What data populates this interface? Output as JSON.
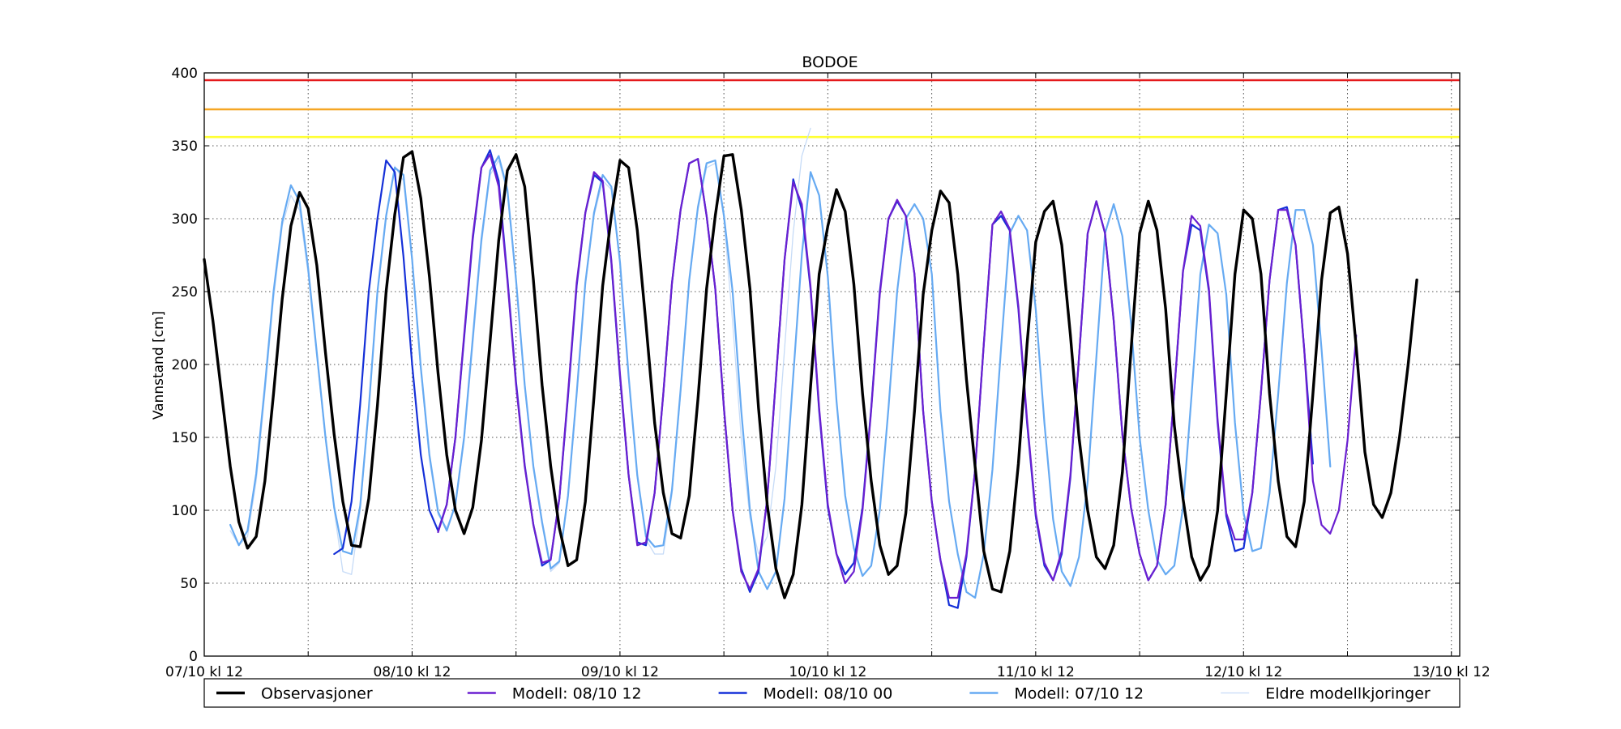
{
  "chart_data": {
    "type": "line",
    "title": "BODOE",
    "xlabel": "",
    "ylabel": "Vannstand [cm]",
    "xlim": [
      0,
      6.04
    ],
    "ylim": [
      0,
      400
    ],
    "yticks": [
      0,
      50,
      100,
      150,
      200,
      250,
      300,
      350,
      400
    ],
    "xticks": [
      {
        "x": 0,
        "label": "07/10 kl 12"
      },
      {
        "x": 0.5,
        "label": ""
      },
      {
        "x": 1,
        "label": "08/10 kl 12"
      },
      {
        "x": 1.5,
        "label": ""
      },
      {
        "x": 2,
        "label": "09/10 kl 12"
      },
      {
        "x": 2.5,
        "label": ""
      },
      {
        "x": 3,
        "label": "10/10 kl 12"
      },
      {
        "x": 3.5,
        "label": ""
      },
      {
        "x": 4,
        "label": "11/10 kl 12"
      },
      {
        "x": 4.5,
        "label": ""
      },
      {
        "x": 5,
        "label": "12/10 kl 12"
      },
      {
        "x": 5.5,
        "label": ""
      },
      {
        "x": 6,
        "label": "13/10 kl 12"
      }
    ],
    "grid": true,
    "legend_position": "bottom",
    "x_step": 0.04167,
    "thresholds": [
      {
        "value": 395,
        "color": "#e41a1c"
      },
      {
        "value": 375,
        "color": "#f5a623"
      },
      {
        "value": 356,
        "color": "#ffff33"
      }
    ],
    "series": [
      {
        "name": "Eldre modellkjoringer",
        "color": "#c6dbf7",
        "width": 1.3,
        "segments": [
          {
            "start": 0.125,
            "values": [
              86,
              76,
              82,
              120,
              180,
              245,
              295,
              316,
              306,
              262,
              205,
              148,
              100,
              58,
              56,
              100,
              168,
              248,
              300,
              336,
              326,
              270,
              195,
              135,
              97,
              88,
              103,
              147,
              213,
              282,
              330,
              340,
              318,
              256,
              184,
              128,
              90,
              58,
              64,
              108,
              178,
              254,
              302,
              326,
              320,
              268,
              190,
              122,
              80,
              70,
              70,
              111,
              180,
              256,
              306,
              335,
              338,
              300
            ]
          },
          {
            "start": 2.5,
            "values": [
              300,
              230,
              150,
              95,
              70,
              82,
              130,
              210,
              290,
              343,
              362
            ]
          }
        ]
      },
      {
        "name": "Modell: 07/10 12",
        "color": "#66aaf2",
        "width": 2.2,
        "segments": [
          {
            "start": 0.125,
            "values": [
              90,
              76,
              86,
              125,
              185,
              250,
              298,
              323,
              312,
              266,
              208,
              150,
              102,
              72,
              70,
              103,
              170,
              250,
              302,
              335,
              330,
              272,
              198,
              138,
              99,
              86,
              104,
              150,
              218,
              286,
              333,
              343,
              320,
              258,
              186,
              130,
              92,
              60,
              65,
              110,
              180,
              256,
              304,
              330,
              322,
              270,
              192,
              124,
              82,
              75,
              76,
              114,
              183,
              258,
              308,
              338,
              340,
              302,
              250,
              168,
              100,
              58,
              46,
              58,
              108,
              192,
              276,
              332,
              316,
              260,
              175,
              110,
              74,
              55,
              62,
              100,
              170,
              250,
              300,
              310,
              300,
              262,
              168,
              106,
              70,
              44,
              40,
              70,
              128,
              212,
              290,
              302,
              292,
              238,
              160,
              94,
              58,
              48,
              68,
              120,
              205,
              290,
              310,
              288,
              228,
              150,
              100,
              66,
              56,
              62,
              102,
              180,
              262,
              296,
              290,
              248,
              160,
              98,
              72,
              74,
              112,
              180,
              256,
              306,
              306,
              282,
              210,
              130
            ]
          }
        ]
      },
      {
        "name": "Modell: 08/10 00",
        "color": "#1530d8",
        "width": 2.2,
        "segments": [
          {
            "start": 0.625,
            "values": [
              70,
              74,
              106,
              172,
              250,
              300,
              340,
              332,
              274,
              200,
              138,
              100,
              86,
              104,
              150,
              218,
              286,
              335,
              347,
              326,
              260,
              188,
              131,
              90,
              62,
              66,
              108,
              178,
              254,
              304,
              330,
              325,
              270,
              192,
              124,
              78,
              76,
              112,
              180,
              256,
              306,
              338,
              341,
              302,
              252,
              170,
              100,
              60,
              44,
              58,
              108,
              190,
              272,
              327,
              306,
              252,
              168,
              102,
              70,
              56,
              64,
              102,
              170,
              250,
              300,
              312,
              302,
              262,
              168,
              106,
              66,
              35,
              33,
              68,
              128,
              214,
              296,
              302,
              292,
              238,
              160,
              96,
              62,
              52,
              70,
              122,
              205,
              290,
              312,
              290,
              230,
              152,
              102,
              70,
              52,
              62,
              104,
              182,
              264,
              296,
              292,
              250,
              160,
              96,
              72,
              74,
              112,
              180,
              258,
              306,
              308,
              282,
              210,
              132
            ]
          }
        ]
      },
      {
        "name": "Modell: 08/10 12",
        "color": "#6a1fd0",
        "width": 2.2,
        "segments": [
          {
            "start": 1.125,
            "values": [
              85,
              104,
              150,
              220,
              288,
              335,
              344,
              322,
              258,
              186,
              130,
              90,
              64,
              66,
              108,
              180,
              256,
              304,
              332,
              326,
              272,
              194,
              124,
              76,
              78,
              112,
              180,
              256,
              306,
              338,
              341,
              302,
              252,
              170,
              100,
              58,
              46,
              60,
              108,
              190,
              272,
              325,
              310,
              254,
              170,
              104,
              70,
              50,
              58,
              100,
              168,
              248,
              300,
              313,
              302,
              262,
              168,
              106,
              66,
              40,
              40,
              70,
              128,
              214,
              296,
              305,
              293,
              240,
              162,
              98,
              64,
              52,
              72,
              124,
              205,
              290,
              312,
              290,
              230,
              152,
              102,
              70,
              52,
              62,
              104,
              182,
              264,
              302,
              295,
              252,
              162,
              98,
              80,
              80,
              112,
              180,
              258,
              306,
              306,
              282,
              210,
              120,
              90,
              84,
              100,
              148,
              220
            ]
          }
        ]
      },
      {
        "name": "Observasjoner",
        "color": "#000000",
        "width": 3.4,
        "segments": [
          {
            "start": 0.0,
            "values": [
              272,
              230,
              180,
              130,
              92,
              74,
              82,
              120,
              180,
              245,
              295,
              318,
              307,
              268,
              208,
              152,
              106,
              76,
              75,
              108,
              172,
              250,
              303,
              342,
              346,
              314,
              260,
              194,
              138,
              100,
              84,
              102,
              148,
              216,
              285,
              333,
              344,
              322,
              258,
              186,
              130,
              88,
              62,
              66,
              106,
              178,
              254,
              302,
              340,
              335,
              292,
              228,
              160,
              112,
              84,
              81,
              110,
              176,
              252,
              302,
              343,
              344,
              306,
              252,
              170,
              104,
              60,
              40,
              56,
              104,
              185,
              262,
              295,
              320,
              305,
              255,
              180,
              120,
              76,
              56,
              62,
              98,
              168,
              248,
              292,
              319,
              311,
              262,
              190,
              130,
              72,
              46,
              44,
              72,
              132,
              214,
              284,
              305,
              312,
              282,
              220,
              150,
              100,
              68,
              60,
              76,
              126,
              210,
              290,
              312,
              292,
              238,
              158,
              108,
              68,
              52,
              62,
              100,
              180,
              262,
              306,
              300,
              262,
              180,
              120,
              82,
              75,
              106,
              180,
              258,
              304,
              308,
              276,
              212,
              140,
              104,
              95,
              112,
              150,
              200,
              258
            ]
          }
        ]
      }
    ],
    "legend": [
      {
        "label": "Observasjoner",
        "color": "#000000"
      },
      {
        "label": "Modell: 08/10 12",
        "color": "#6a1fd0"
      },
      {
        "label": "Modell: 08/10 00",
        "color": "#1530d8"
      },
      {
        "label": "Modell: 07/10 12",
        "color": "#66aaf2"
      },
      {
        "label": "Eldre modellkjoringer",
        "color": "#c6dbf7"
      }
    ]
  }
}
